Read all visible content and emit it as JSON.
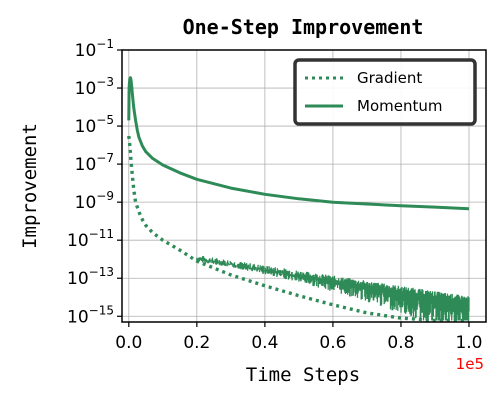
{
  "chart_data": {
    "type": "line",
    "title": "One-Step Improvement",
    "xlabel": "Time Steps",
    "ylabel": "Improvement",
    "x_offset_label": "1e5",
    "x_ticks": [
      "0.0",
      "0.2",
      "0.4",
      "0.6",
      "0.8",
      "1.0"
    ],
    "x_tick_values": [
      0,
      0.2,
      0.4,
      0.6,
      0.8,
      1.0
    ],
    "y_scale": "log",
    "y_ticks": [
      {
        "value": 0.1,
        "base": "10",
        "exp": "−1"
      },
      {
        "value": 0.001,
        "base": "10",
        "exp": "−3"
      },
      {
        "value": 1e-05,
        "base": "10",
        "exp": "−5"
      },
      {
        "value": 1e-07,
        "base": "10",
        "exp": "−7"
      },
      {
        "value": 1e-09,
        "base": "10",
        "exp": "−9"
      },
      {
        "value": 1e-11,
        "base": "10",
        "exp": "−11"
      },
      {
        "value": 1e-13,
        "base": "10",
        "exp": "−13"
      },
      {
        "value": 1e-15,
        "base": "10",
        "exp": "−15"
      }
    ],
    "xlim": [
      -0.02,
      1.05
    ],
    "ylim": [
      5e-16,
      0.1
    ],
    "grid": true,
    "legend_position": "top-right",
    "series": [
      {
        "name": "Gradient",
        "style": "dotted",
        "color": "#2e8b57",
        "x": [
          0.0,
          0.003,
          0.006,
          0.01,
          0.015,
          0.02,
          0.03,
          0.04,
          0.05,
          0.07,
          0.1,
          0.15,
          0.2,
          0.3,
          0.4,
          0.5,
          0.6,
          0.7,
          0.8,
          0.85,
          0.9,
          0.95,
          1.0
        ],
        "y": [
          3e-06,
          1e-06,
          2e-07,
          3e-08,
          4e-09,
          1e-09,
          3e-10,
          1.2e-10,
          6e-11,
          2.5e-11,
          1e-11,
          3e-12,
          8e-13,
          1.5e-13,
          4e-14,
          1.2e-14,
          4e-15,
          1.5e-15,
          8e-16,
          7e-16,
          6e-16,
          6e-16,
          6e-16
        ]
      },
      {
        "name": "Momentum",
        "style": "solid",
        "color": "#2e8b57",
        "x": [
          0.0,
          0.001,
          0.002,
          0.003,
          0.004,
          0.005,
          0.006,
          0.007,
          0.008,
          0.009,
          0.01,
          0.012,
          0.015,
          0.02,
          0.025,
          0.03,
          0.04,
          0.05,
          0.07,
          0.1,
          0.15,
          0.2,
          0.3,
          0.4,
          0.5,
          0.6,
          0.7,
          0.8,
          0.9,
          1.0
        ],
        "y": [
          2e-05,
          0.001,
          0.002,
          0.003,
          0.0035,
          0.0035,
          0.003,
          0.0022,
          0.0015,
          0.001,
          0.0006,
          0.00025,
          8e-05,
          2e-05,
          6e-06,
          2.5e-06,
          9e-07,
          4.5e-07,
          2e-07,
          9e-08,
          3.5e-08,
          1.6e-08,
          5.5e-09,
          2.6e-09,
          1.5e-09,
          1e-09,
          8e-10,
          6.5e-10,
          5.5e-10,
          4.5e-10
        ]
      }
    ],
    "noise_band": {
      "x_start": 0.2,
      "x_end": 1.0,
      "upper_start": 1.2e-12,
      "upper_end": 8e-15,
      "lower_floor": 6e-16
    }
  }
}
